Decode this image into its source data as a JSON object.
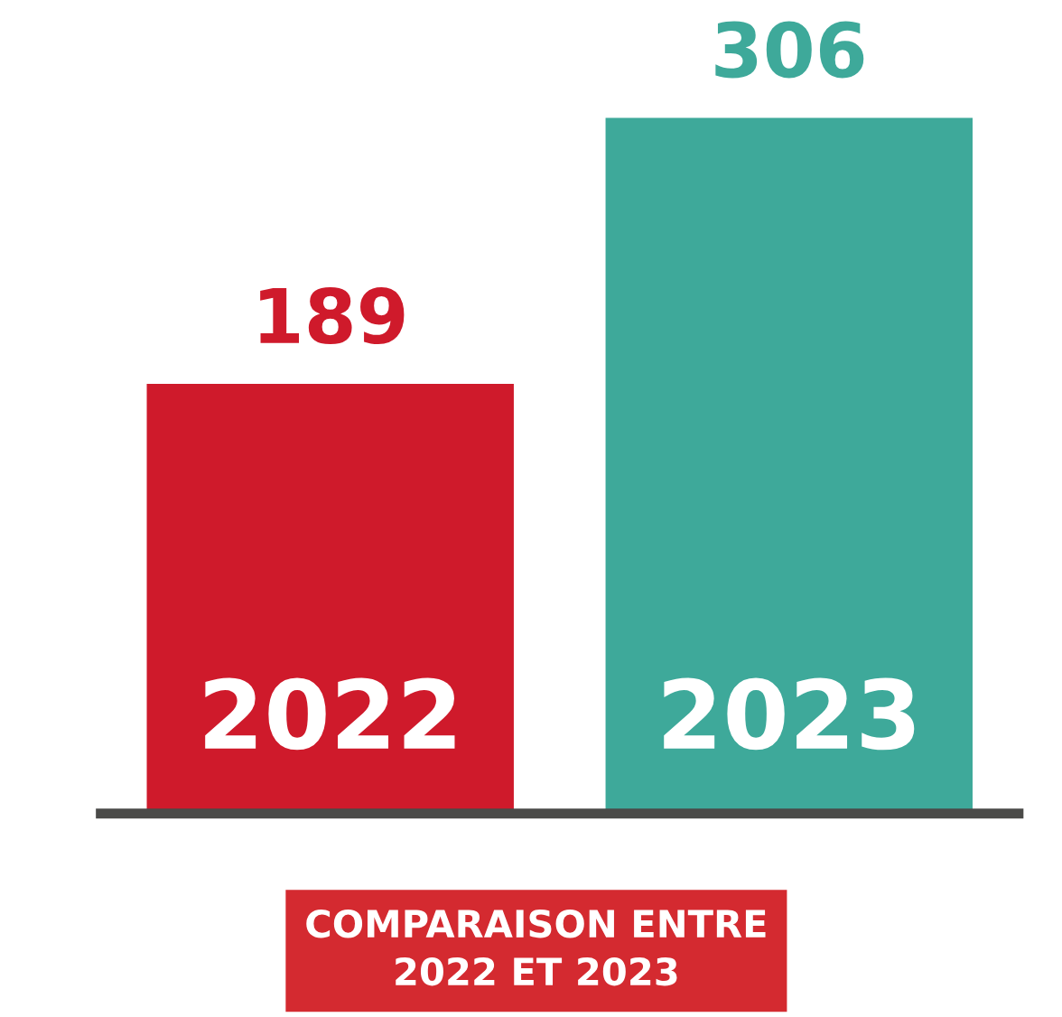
{
  "chart_data": {
    "type": "bar",
    "title": "COMPARAISON ENTRE\n2022 ET 2023",
    "categories": [
      "2022",
      "2023"
    ],
    "values": [
      189,
      306
    ],
    "colors": [
      "#cf1a2b",
      "#3ea99a"
    ],
    "data_labels": true
  }
}
